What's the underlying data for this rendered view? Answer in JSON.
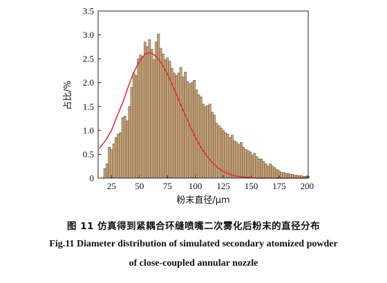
{
  "caption": {
    "cn": "图 11    仿真得到紧耦合环缝喷嘴二次雾化后粉末的直径分布",
    "en_line1": "Fig.11    Diameter distribution of simulated secondary atomized powder",
    "en_line2": "of close-coupled annular nozzle"
  },
  "colors": {
    "bar_fill": "#c8a57a",
    "bar_stroke": "#4a3a2a",
    "curve": "#e03030",
    "axis": "#222222"
  },
  "chart_data": {
    "type": "bar",
    "xlabel": "粉末直径/μm",
    "ylabel": "占比/%",
    "xlim": [
      13,
      201
    ],
    "ylim": [
      0,
      3.5
    ],
    "xticks": [
      25,
      50,
      75,
      100,
      125,
      150,
      175,
      200
    ],
    "yticks": [
      0,
      0.5,
      1.0,
      1.5,
      2.0,
      2.5,
      3.0,
      3.5
    ],
    "ytick_labels": [
      "0",
      "0.5",
      "1.0",
      "1.5",
      "2.0",
      "2.5",
      "3.0",
      "3.5"
    ],
    "bin_start": 18,
    "bin_width": 2,
    "values": [
      0.2,
      0.3,
      0.65,
      0.6,
      0.72,
      0.85,
      0.92,
      0.95,
      1.27,
      1.3,
      1.2,
      1.5,
      1.9,
      2.2,
      2.15,
      2.5,
      2.58,
      2.55,
      2.85,
      2.75,
      2.9,
      2.7,
      2.48,
      2.85,
      3.02,
      2.72,
      2.6,
      2.48,
      2.52,
      2.45,
      2.3,
      2.2,
      2.15,
      2.2,
      2.32,
      2.12,
      2.22,
      2.02,
      1.98,
      2.0,
      2.05,
      1.85,
      1.75,
      1.7,
      1.55,
      1.5,
      1.52,
      1.55,
      1.38,
      1.32,
      1.15,
      1.1,
      1.05,
      1.0,
      0.95,
      0.92,
      0.85,
      0.9,
      0.78,
      0.75,
      0.7,
      0.75,
      0.65,
      0.6,
      0.58,
      0.55,
      0.48,
      0.52,
      0.45,
      0.4,
      0.4,
      0.35,
      0.3,
      0.25,
      0.3,
      0.25,
      0.22,
      0.18,
      0.15,
      0.12,
      0.12,
      0.1,
      0.1,
      0.08,
      0.08,
      0.06,
      0.06,
      0.05,
      0.05,
      0.04,
      0.04,
      0.04
    ],
    "fit_curve": {
      "type": "normal",
      "x": [
        14,
        20,
        25,
        30,
        35,
        40,
        45,
        50,
        55,
        60,
        65,
        70,
        75,
        80,
        85,
        90,
        95,
        100,
        105,
        110,
        115,
        120,
        125,
        130,
        135,
        140,
        145,
        150,
        155,
        160,
        165,
        170,
        175,
        180,
        185,
        190,
        195,
        200
      ],
      "y": [
        0.62,
        0.8,
        1.0,
        1.3,
        1.58,
        1.92,
        2.22,
        2.45,
        2.6,
        2.63,
        2.55,
        2.39,
        2.18,
        1.92,
        1.64,
        1.37,
        1.1,
        0.86,
        0.64,
        0.47,
        0.33,
        0.22,
        0.14,
        0.09,
        0.05,
        0.03,
        0.02,
        0.01,
        0.0,
        0.0,
        0.0,
        0.0,
        0.0,
        0.0,
        0.0,
        0.0,
        0.0,
        0.0
      ]
    }
  }
}
